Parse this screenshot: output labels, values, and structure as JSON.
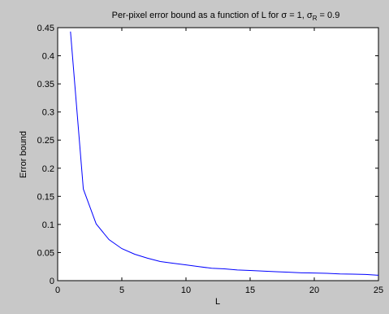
{
  "chart_data": {
    "type": "line",
    "title": {
      "prefix": "Per-pixel error bound as a function of L for σ = 1, σ",
      "subscript": "R",
      "suffix": " = 0.9"
    },
    "xlabel": "L",
    "ylabel": "Error bound",
    "xlim": [
      0,
      25
    ],
    "ylim": [
      0,
      0.45
    ],
    "xticks": [
      0,
      5,
      10,
      15,
      20,
      25
    ],
    "xtick_labels": [
      "0",
      "5",
      "10",
      "15",
      "20",
      "25"
    ],
    "yticks": [
      0,
      0.05,
      0.1,
      0.15,
      0.2,
      0.25,
      0.3,
      0.35,
      0.4,
      0.45
    ],
    "ytick_labels": [
      "0",
      "0.05",
      "0.1",
      "0.15",
      "0.2",
      "0.25",
      "0.3",
      "0.35",
      "0.4",
      "0.45"
    ],
    "grid": false,
    "legend": null,
    "series": [
      {
        "color": "#0000ff",
        "x": [
          1,
          2,
          3,
          4,
          5,
          6,
          7,
          8,
          9,
          10,
          11,
          12,
          13,
          14,
          15,
          16,
          17,
          18,
          19,
          20,
          21,
          22,
          23,
          24,
          25
        ],
        "y": [
          0.443,
          0.163,
          0.101,
          0.073,
          0.057,
          0.047,
          0.04,
          0.034,
          0.031,
          0.028,
          0.025,
          0.022,
          0.021,
          0.019,
          0.018,
          0.017,
          0.016,
          0.015,
          0.014,
          0.0135,
          0.013,
          0.012,
          0.0115,
          0.011,
          0.0095
        ]
      }
    ]
  }
}
